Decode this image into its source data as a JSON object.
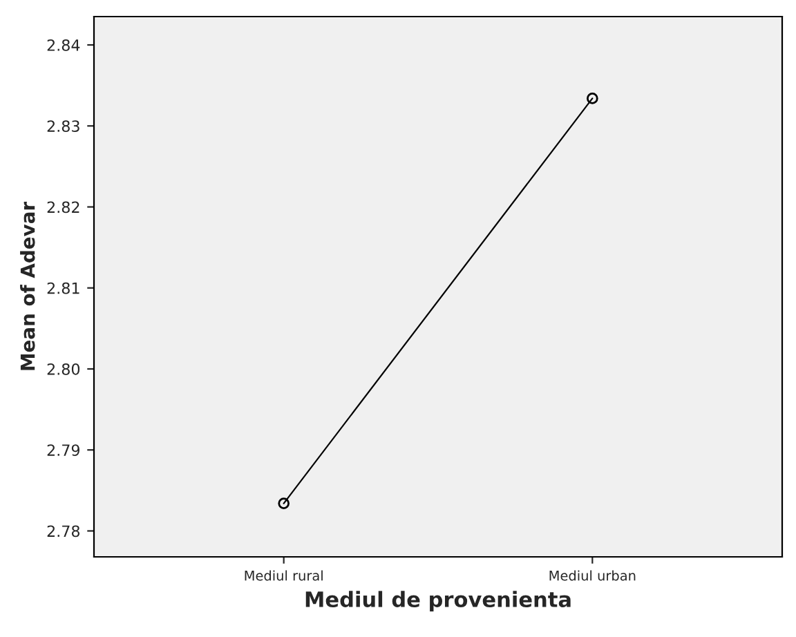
{
  "chart_data": {
    "type": "line",
    "xlabel": "Mediul de provenienta",
    "ylabel": "Mean of Adevar",
    "categories": [
      "Mediul rural",
      "Mediul urban"
    ],
    "series": [
      {
        "color": "#000000",
        "values": [
          2.7834,
          2.8334
        ]
      }
    ],
    "ylim": [
      2.7768,
      2.8435
    ],
    "yticks": [
      2.78,
      2.79,
      {
        "value": 2.8,
        "label": "2.80"
      },
      2.81,
      2.82,
      2.83,
      2.84
    ],
    "marker": "circle",
    "line_style": "solid",
    "grid": false
  }
}
